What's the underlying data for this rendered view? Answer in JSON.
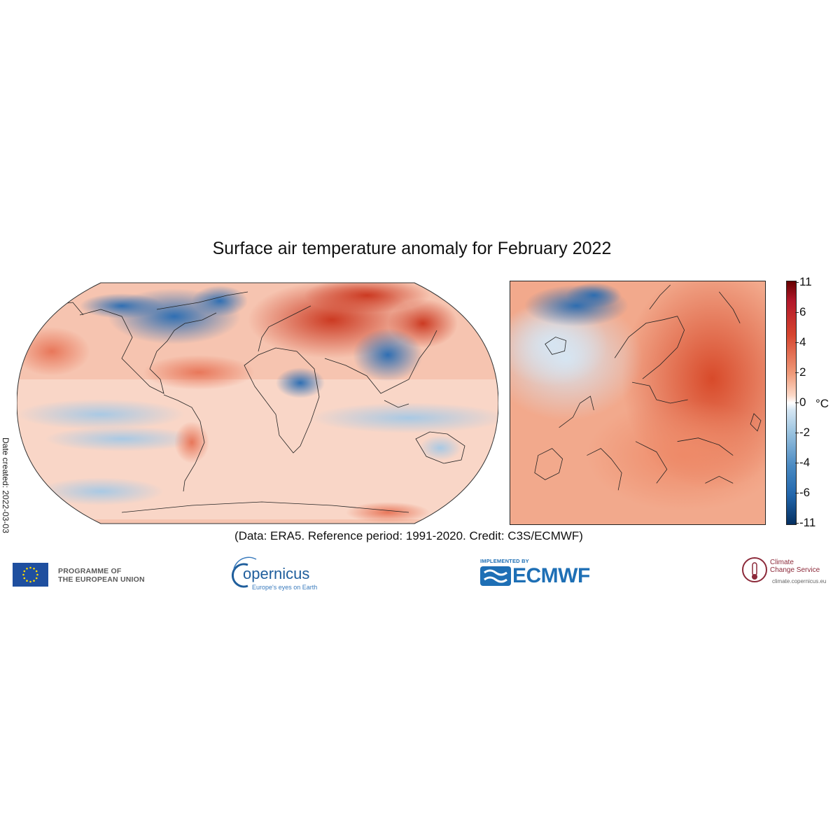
{
  "title": "Surface air temperature anomaly for February 2022",
  "date_created": "Date created: 2022-03-03",
  "caption": "(Data: ERA5.  Reference period: 1991-2020.  Credit: C3S/ECMWF)",
  "colorbar": {
    "unit": "°C",
    "tick_labels": [
      "11",
      "6",
      "4",
      "2",
      "0",
      "-2",
      "-4",
      "-6",
      "-11"
    ],
    "colors": {
      "max": "#670000",
      "warm": "#d6452f",
      "neutral": "#ffffff",
      "cool": "#4a8ac2",
      "min": "#053061"
    }
  },
  "maps": [
    {
      "name": "World",
      "projection": "Robinson"
    },
    {
      "name": "Europe",
      "projection": "regional"
    }
  ],
  "logos": {
    "eu": {
      "line1": "PROGRAMME OF",
      "line2": "THE EUROPEAN UNION"
    },
    "copernicus": {
      "word": "opernicus",
      "tagline": "Europe's eyes on Earth"
    },
    "ecmwf": {
      "implemented": "IMPLEMENTED BY",
      "word": "ECMWF"
    },
    "c3s": {
      "line1": "Climate",
      "line2": "Change Service",
      "url": "climate.copernicus.eu"
    }
  }
}
